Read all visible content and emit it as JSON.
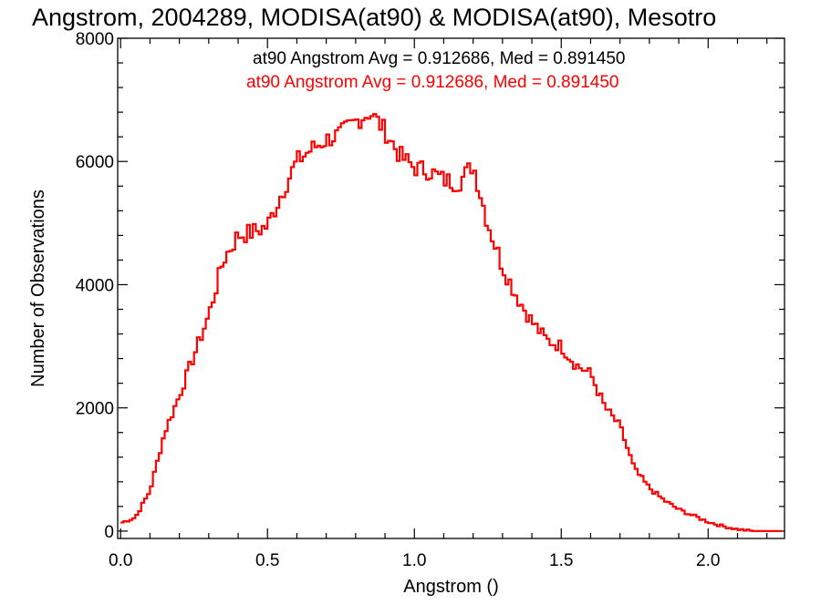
{
  "chart_data": {
    "type": "histogram",
    "title": "Angstrom, 2004289, MODISA(at90) & MODISA(at90), Mesotro",
    "xlabel": "Angstrom ()",
    "ylabel": "Number of Observations",
    "xlim": [
      -0.01,
      2.26
    ],
    "ylim": [
      -120,
      8000
    ],
    "x_ticks": [
      0.0,
      0.5,
      1.0,
      1.5,
      2.0
    ],
    "x_tick_labels": [
      "0.0",
      "0.5",
      "1.0",
      "1.5",
      "2.0"
    ],
    "y_ticks": [
      0,
      2000,
      4000,
      6000,
      8000
    ],
    "y_tick_labels": [
      "0",
      "2000",
      "4000",
      "6000",
      "8000"
    ],
    "annotations": [
      {
        "text": "at90 Angstrom Avg = 0.912686, Med = 0.891450",
        "color": "#000000"
      },
      {
        "text": "at90 Angstrom Avg = 0.912686, Med = 0.891450",
        "color": "#ff0000"
      }
    ],
    "series": [
      {
        "color": "#ff0000",
        "points": [
          [
            0.0,
            130
          ],
          [
            0.05,
            220
          ],
          [
            0.1,
            650
          ],
          [
            0.15,
            1600
          ],
          [
            0.2,
            2200
          ],
          [
            0.25,
            2850
          ],
          [
            0.3,
            3500
          ],
          [
            0.35,
            4400
          ],
          [
            0.4,
            4800
          ],
          [
            0.45,
            4850
          ],
          [
            0.5,
            4950
          ],
          [
            0.55,
            5500
          ],
          [
            0.6,
            6000
          ],
          [
            0.65,
            6200
          ],
          [
            0.7,
            6350
          ],
          [
            0.75,
            6450
          ],
          [
            0.8,
            6650
          ],
          [
            0.85,
            6800
          ],
          [
            0.9,
            6500
          ],
          [
            0.95,
            6100
          ],
          [
            1.0,
            5900
          ],
          [
            1.05,
            5850
          ],
          [
            1.1,
            5700
          ],
          [
            1.15,
            5650
          ],
          [
            1.2,
            5950
          ],
          [
            1.25,
            5000
          ],
          [
            1.3,
            4300
          ],
          [
            1.35,
            3800
          ],
          [
            1.4,
            3400
          ],
          [
            1.45,
            3100
          ],
          [
            1.5,
            3000
          ],
          [
            1.55,
            2700
          ],
          [
            1.6,
            2550
          ],
          [
            1.65,
            2000
          ],
          [
            1.7,
            1700
          ],
          [
            1.75,
            1000
          ],
          [
            1.8,
            700
          ],
          [
            1.85,
            500
          ],
          [
            1.9,
            350
          ],
          [
            1.95,
            250
          ],
          [
            2.0,
            150
          ],
          [
            2.05,
            80
          ],
          [
            2.1,
            30
          ],
          [
            2.15,
            0
          ],
          [
            2.25,
            0
          ]
        ]
      }
    ]
  }
}
